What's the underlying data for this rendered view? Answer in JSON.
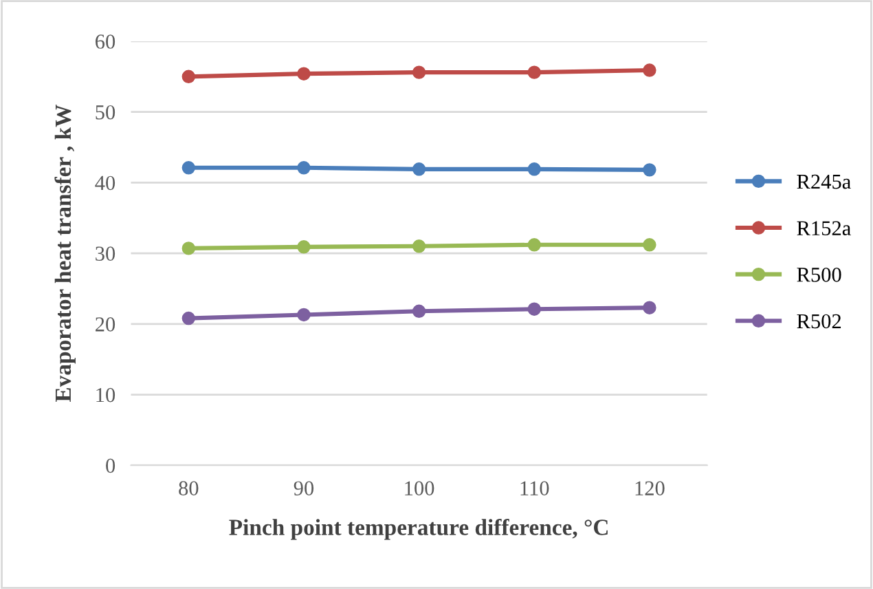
{
  "chart_data": {
    "type": "line",
    "xlabel": "Pinch point temperature difference, °C",
    "ylabel": "Evaporator heat transfer , kW",
    "categories": [
      "80",
      "90",
      "100",
      "110",
      "120"
    ],
    "series": [
      {
        "name": "R245a",
        "color": "#4a7ebb",
        "values": [
          42.1,
          42.1,
          41.9,
          41.9,
          41.8
        ]
      },
      {
        "name": "R152a",
        "color": "#be4b48",
        "values": [
          55.0,
          55.4,
          55.6,
          55.6,
          55.9
        ]
      },
      {
        "name": "R500",
        "color": "#98b954",
        "values": [
          30.7,
          30.9,
          31.0,
          31.2,
          31.2
        ]
      },
      {
        "name": "R502",
        "color": "#7d60a0",
        "values": [
          20.8,
          21.3,
          21.8,
          22.1,
          22.3
        ]
      }
    ],
    "ylim": [
      0,
      60
    ],
    "yticks": [
      0,
      10,
      20,
      30,
      40,
      50,
      60
    ],
    "grid": "y",
    "legend": "right",
    "marker": "circle",
    "line_style": "solid"
  }
}
